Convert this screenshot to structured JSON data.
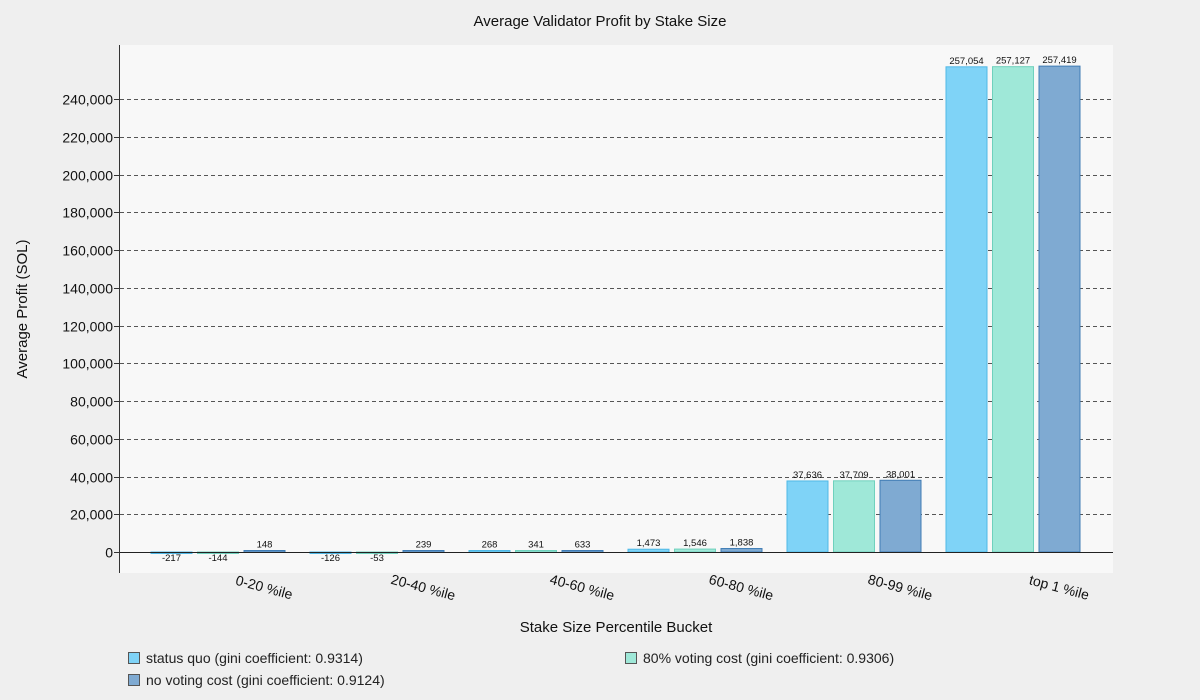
{
  "chart_data": {
    "type": "bar",
    "title": "Average Validator Profit by Stake Size",
    "xlabel": "Stake Size Percentile Bucket",
    "ylabel": "Average Profit (SOL)",
    "categories": [
      "0-20 %ile",
      "20-40 %ile",
      "40-60 %ile",
      "60-80 %ile",
      "80-99 %ile",
      "top 1 %ile"
    ],
    "series": [
      {
        "name": "status quo (gini coefficient: 0.9314)",
        "color": "#7fd3f7",
        "values": [
          -217,
          -126,
          268,
          1473,
          37636,
          257054
        ],
        "labels": [
          "-217",
          "-126",
          "268",
          "1,473",
          "37,636",
          "257,054"
        ]
      },
      {
        "name": "80% voting cost (gini coefficient: 0.9306)",
        "color": "#9fe8d8",
        "values": [
          -144,
          -53,
          341,
          1546,
          37709,
          257127
        ],
        "labels": [
          "-144",
          "-53",
          "341",
          "1,546",
          "37,709",
          "257,127"
        ]
      },
      {
        "name": "no voting cost (gini coefficient: 0.9124)",
        "color": "#7faad2",
        "values": [
          148,
          239,
          633,
          1838,
          38001,
          257419
        ],
        "labels": [
          "148",
          "239",
          "633",
          "1,838",
          "38,001",
          "257,419"
        ]
      }
    ],
    "yticks": [
      0,
      20000,
      40000,
      60000,
      80000,
      100000,
      120000,
      140000,
      160000,
      180000,
      200000,
      220000,
      240000
    ],
    "ytick_labels": [
      "0",
      "20,000",
      "40,000",
      "60,000",
      "80,000",
      "100,000",
      "120,000",
      "140,000",
      "160,000",
      "180,000",
      "200,000",
      "220,000",
      "240,000"
    ],
    "ylim": [
      -11000,
      280000
    ],
    "grid": "horizontal-dashed",
    "legend_position": "bottom"
  }
}
